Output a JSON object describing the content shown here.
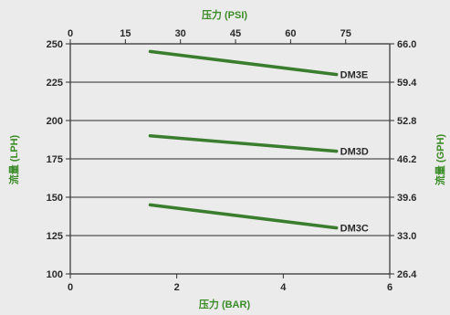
{
  "chart_data": {
    "type": "line",
    "xlabel": "压力 (BAR)",
    "x2label": "压力 (PSI)",
    "ylabel": "流量 (LPH)",
    "y2label": "流量 (GPH)",
    "xlim": [
      0,
      6
    ],
    "x_ticks": [
      0,
      2,
      4,
      6
    ],
    "x2lim": [
      0,
      87
    ],
    "x2_ticks": [
      0,
      15,
      30,
      45,
      60,
      75
    ],
    "ylim": [
      100,
      250
    ],
    "y_ticks": [
      100,
      125,
      150,
      175,
      200,
      225,
      250
    ],
    "y2_ticks": [
      "26.4",
      "33.0",
      "39.6",
      "46.2",
      "52.8",
      "59.4",
      "66.0"
    ],
    "grid": "horizontal",
    "line_color": "#3b7d2e",
    "series": [
      {
        "name": "DM3E",
        "x": [
          1.5,
          5.0
        ],
        "y": [
          245,
          230
        ]
      },
      {
        "name": "DM3D",
        "x": [
          1.5,
          5.0
        ],
        "y": [
          190,
          180
        ]
      },
      {
        "name": "DM3C",
        "x": [
          1.5,
          5.0
        ],
        "y": [
          145,
          130
        ]
      }
    ]
  }
}
